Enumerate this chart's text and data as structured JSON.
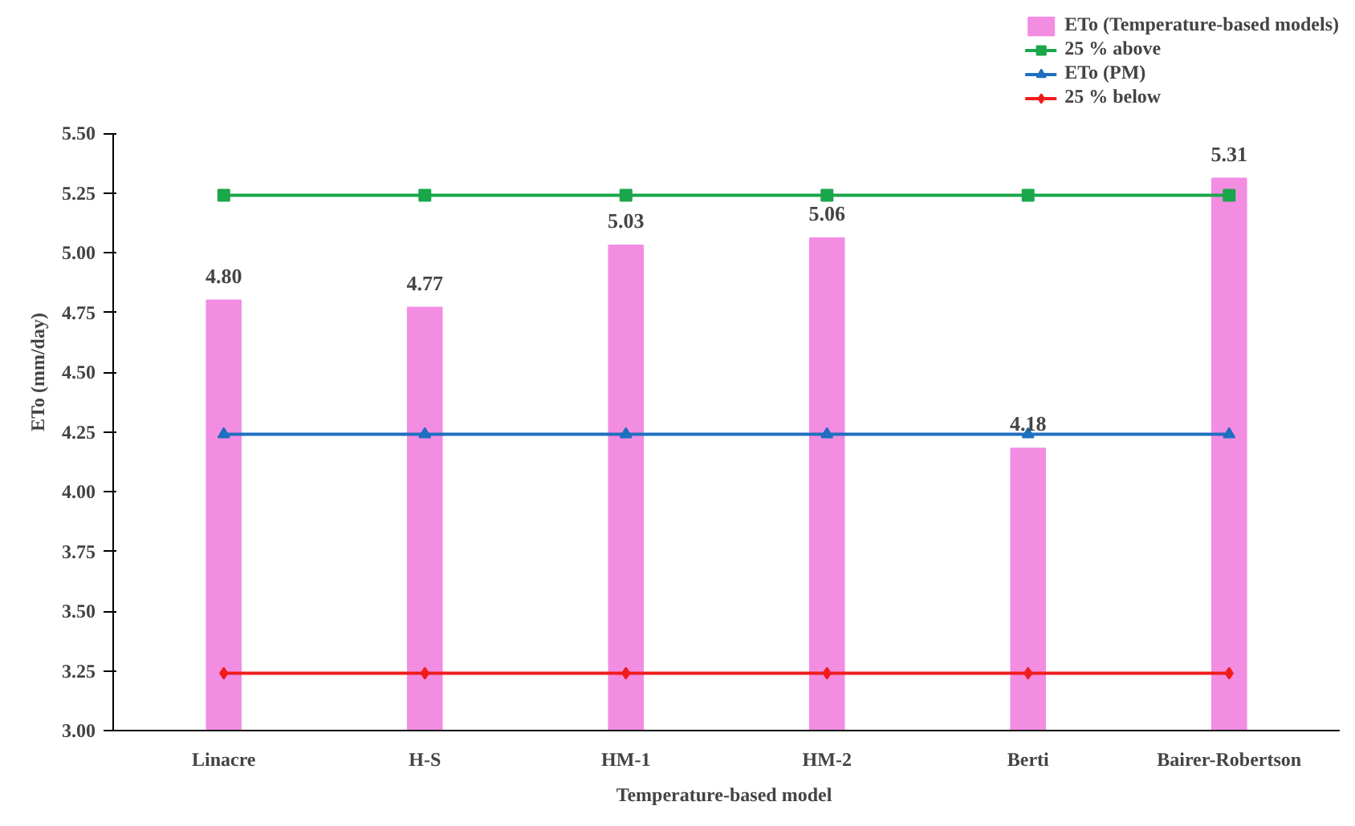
{
  "chart_data": {
    "type": "bar",
    "xlabel": "Temperature-based  model",
    "ylabel": "ETo (mm/day)",
    "categories": [
      "Linacre",
      "H-S",
      "HM-1",
      "HM-2",
      "Berti",
      "Bairer-Robertson"
    ],
    "series": [
      {
        "name": "ETo (Temperature-based models)",
        "color": "#f28de2",
        "values": [
          4.8,
          4.77,
          5.03,
          5.06,
          4.18,
          5.31
        ],
        "value_labels": [
          "4.80",
          "4.77",
          "5.03",
          "5.06",
          "4.18",
          "5.31"
        ]
      },
      {
        "name": "25 % above",
        "type": "line",
        "color": "#1aa64a",
        "marker": "square",
        "values": [
          5.24,
          5.24,
          5.24,
          5.24,
          5.24,
          5.24
        ]
      },
      {
        "name": "ETo (PM)",
        "type": "line",
        "color": "#1f6fc0",
        "marker": "triangle",
        "values": [
          4.24,
          4.24,
          4.24,
          4.24,
          4.24,
          4.24
        ]
      },
      {
        "name": "25 % below",
        "type": "line",
        "color": "#f01c1c",
        "marker": "diamond",
        "values": [
          3.24,
          3.24,
          3.24,
          3.24,
          3.24,
          3.24
        ]
      }
    ],
    "ylim": [
      3.0,
      5.5
    ],
    "yticks": [
      {
        "value": 3,
        "label": "3.00"
      },
      {
        "value": 3.25,
        "label": "3.25"
      },
      {
        "value": 3.5,
        "label": "3.50"
      },
      {
        "value": 3.75,
        "label": "3.75"
      },
      {
        "value": 4,
        "label": "4.00"
      },
      {
        "value": 4.25,
        "label": "4.25"
      },
      {
        "value": 4.5,
        "label": "4.50"
      },
      {
        "value": 4.75,
        "label": "4.75"
      },
      {
        "value": 5,
        "label": "5.00"
      },
      {
        "value": 5.25,
        "label": "5.25"
      },
      {
        "value": 5.5,
        "label": "5.50"
      }
    ],
    "grid": false,
    "legend": "top right"
  }
}
